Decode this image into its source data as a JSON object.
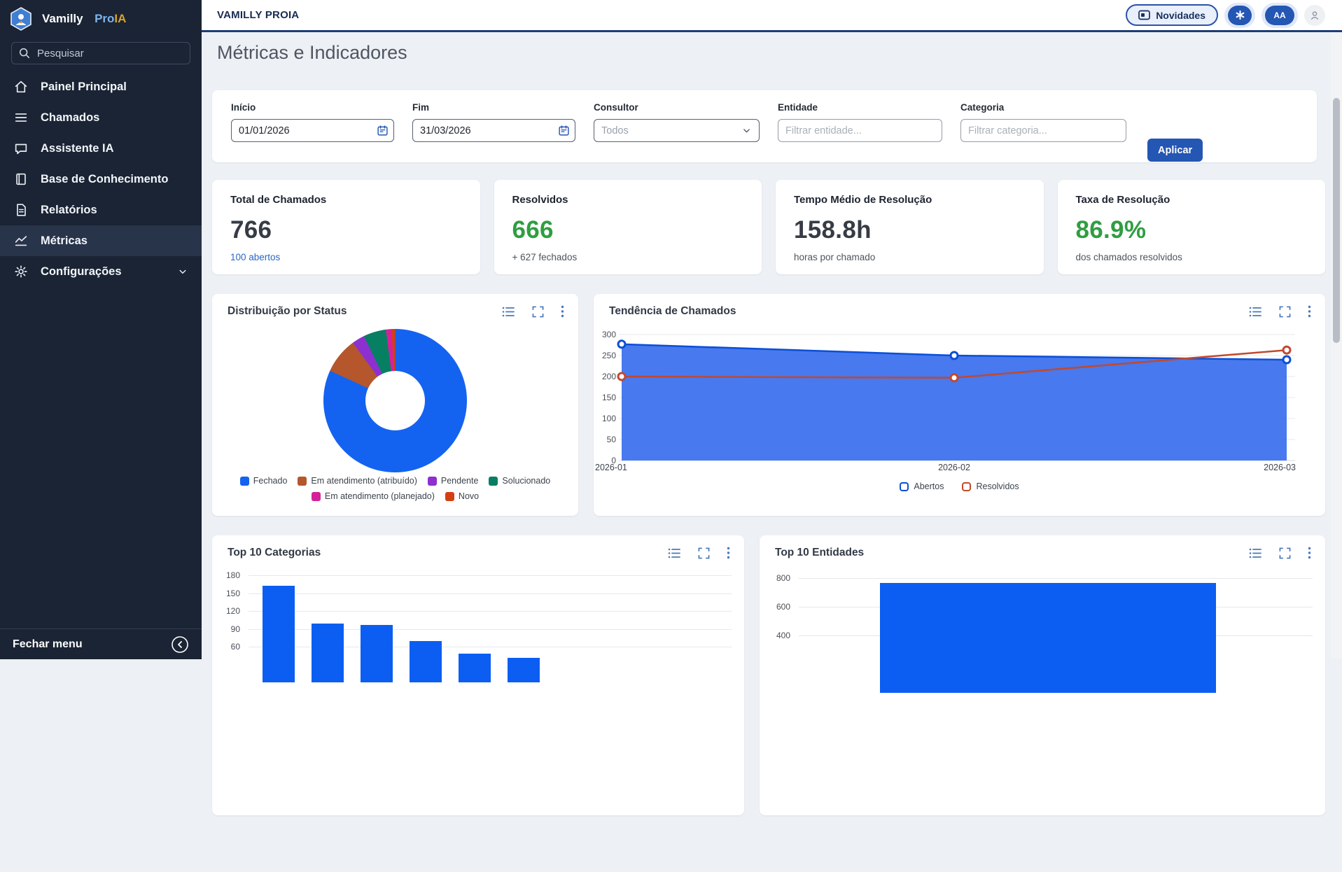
{
  "sidebar": {
    "brand": {
      "name": "Vamilly",
      "pro": "Pro",
      "ia": "IA"
    },
    "search_placeholder": "Pesquisar",
    "items": [
      {
        "label": "Painel Principal",
        "icon": "home"
      },
      {
        "label": "Chamados",
        "icon": "list-lines"
      },
      {
        "label": "Assistente IA",
        "icon": "chat-bubble"
      },
      {
        "label": "Base de Conhecimento",
        "icon": "book"
      },
      {
        "label": "Relatórios",
        "icon": "document"
      },
      {
        "label": "Métricas",
        "icon": "line-chart",
        "active": true
      },
      {
        "label": "Configurações",
        "icon": "gear",
        "expandable": true
      }
    ],
    "footer_label": "Fechar menu"
  },
  "header": {
    "app_title": "VAMILLY PROIA",
    "novidades_label": "Novidades",
    "avatar_label": "AA"
  },
  "page": {
    "title": "Métricas e Indicadores"
  },
  "filters": {
    "inicio": {
      "label": "Início",
      "value": "01/01/2026"
    },
    "fim": {
      "label": "Fim",
      "value": "31/03/2026"
    },
    "consultor": {
      "label": "Consultor",
      "value": "Todos"
    },
    "entidade": {
      "label": "Entidade",
      "placeholder": "Filtrar entidade..."
    },
    "categoria": {
      "label": "Categoria",
      "placeholder": "Filtrar categoria..."
    },
    "apply_label": "Aplicar"
  },
  "kpis": [
    {
      "title": "Total de Chamados",
      "value": "766",
      "sub": "100 abertos",
      "value_color": "#363c45",
      "sub_color": "#2a66c8"
    },
    {
      "title": "Resolvidos",
      "value": "666",
      "sub": "+ 627 fechados",
      "value_color": "#2f9e41",
      "sub_color": "#4d545e"
    },
    {
      "title": "Tempo Médio de Resolução",
      "value": "158.8h",
      "sub": "horas por chamado",
      "value_color": "#363c45",
      "sub_color": "#4d545e"
    },
    {
      "title": "Taxa de Resolução",
      "value": "86.9%",
      "sub": "dos chamados resolvidos",
      "value_color": "#2f9e41",
      "sub_color": "#4d545e"
    }
  ],
  "chart_data": [
    {
      "id": "status_donut",
      "type": "pie",
      "title": "Distribuição por Status",
      "labels": [
        "Fechado",
        "Em atendimento (atribuído)",
        "Pendente",
        "Solucionado",
        "Em atendimento (planejado)",
        "Novo"
      ],
      "values": [
        627,
        62,
        22,
        39,
        10,
        6
      ],
      "colors": [
        "#1463f0",
        "#b5562d",
        "#8e30cf",
        "#077f63",
        "#d4219a",
        "#d43f12"
      ],
      "legend_position": "bottom"
    },
    {
      "id": "trend",
      "type": "area",
      "title": "Tendência de Chamados",
      "x": [
        "2026-01",
        "2026-02",
        "2026-03"
      ],
      "series": [
        {
          "name": "Abertos",
          "values": [
            277,
            250,
            240
          ],
          "color": "#0b4fd6",
          "fill": "#3e72ee"
        },
        {
          "name": "Resolvidos",
          "values": [
            200,
            197,
            263
          ],
          "color": "#c0492f",
          "fill": null
        }
      ],
      "ylim": [
        0,
        300
      ],
      "yticks": [
        0,
        50,
        100,
        150,
        200,
        250,
        300
      ],
      "grid": true,
      "legend_position": "bottom"
    },
    {
      "id": "top_categorias",
      "type": "bar",
      "title": "Top 10 Categorias",
      "values": [
        162,
        99,
        96,
        70,
        48,
        41
      ],
      "visible_yticks": [
        180,
        150,
        120,
        90,
        60
      ],
      "ylim": [
        0,
        180
      ],
      "bar_color": "#0c5ef2",
      "note": "chart cut off at bottom of viewport; category labels not visible"
    },
    {
      "id": "top_entidades",
      "type": "bar",
      "title": "Top 10 Entidades",
      "values": [
        766
      ],
      "visible_yticks": [
        800,
        600,
        400
      ],
      "ylim": [
        0,
        800
      ],
      "bar_color": "#0c5ef2",
      "note": "chart cut off at bottom of viewport; entity labels not visible"
    }
  ]
}
